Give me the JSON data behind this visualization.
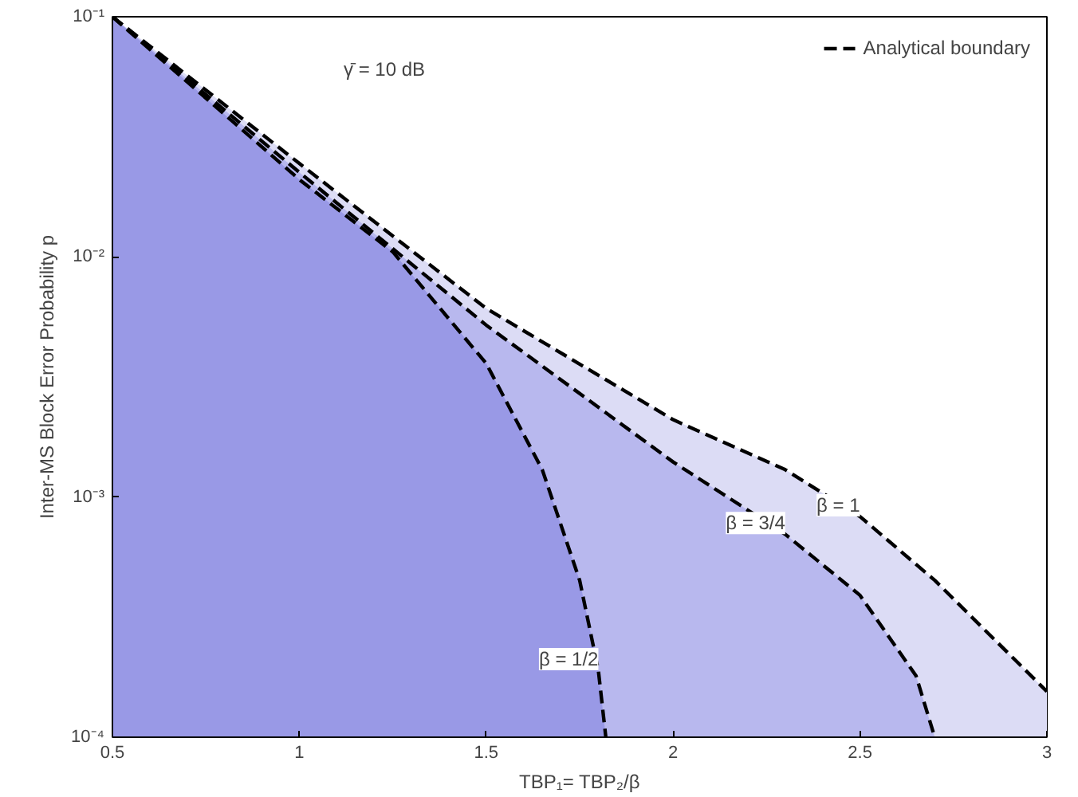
{
  "chart_data": {
    "type": "area",
    "xlabel": "TBP₁= TBP₂/β",
    "ylabel": "Inter-MS Block Error Probability p",
    "log": "y",
    "xlim": [
      0.5,
      3
    ],
    "ylim": [
      0.0001,
      0.1
    ],
    "xticks": [
      0.5,
      1,
      1.5,
      2,
      2.5,
      3
    ],
    "yticks": [
      {
        "value": 0.0001,
        "label": "10⁻⁴"
      },
      {
        "value": 0.001,
        "label": "10⁻³"
      },
      {
        "value": 0.01,
        "label": "10⁻²"
      },
      {
        "value": 0.1,
        "label": "10⁻¹"
      }
    ],
    "grid": false,
    "legend": "top right",
    "line_style": "dashed",
    "series": [
      {
        "name": "Analytical boundary",
        "color": "#dcdcf5",
        "x": [
          0.5,
          1,
          1.5,
          2,
          2.3,
          2.5,
          2.7,
          3
        ],
        "values": [
          0.1,
          0.0245,
          0.0061,
          0.0021,
          0.0013,
          0.00083,
          0.00045,
          0.000155
        ]
      },
      {
        "color": "#b8b8ee",
        "x": [
          0.5,
          1,
          1.5,
          2,
          2.3,
          2.5,
          2.65,
          2.7
        ],
        "values": [
          0.1,
          0.0225,
          0.0052,
          0.0014,
          0.0007,
          0.00039,
          0.00018,
          0.0001
        ]
      },
      {
        "color": "#9999e6",
        "x": [
          0.5,
          1,
          1.25,
          1.5,
          1.65,
          1.75,
          1.8,
          1.82
        ],
        "values": [
          0.1,
          0.021,
          0.0105,
          0.0036,
          0.0013,
          0.00045,
          0.00019,
          0.0001
        ]
      }
    ],
    "annotations": [
      "γ̄ = 10 dB",
      {
        "text": "β = 1",
        "x": 2.5,
        "y": 0.00083
      },
      {
        "text": "β = 3/4",
        "x": 2.3,
        "y": 0.0007
      },
      {
        "text": "β = 1/2",
        "x": 1.8,
        "y": 0.00019
      }
    ]
  }
}
